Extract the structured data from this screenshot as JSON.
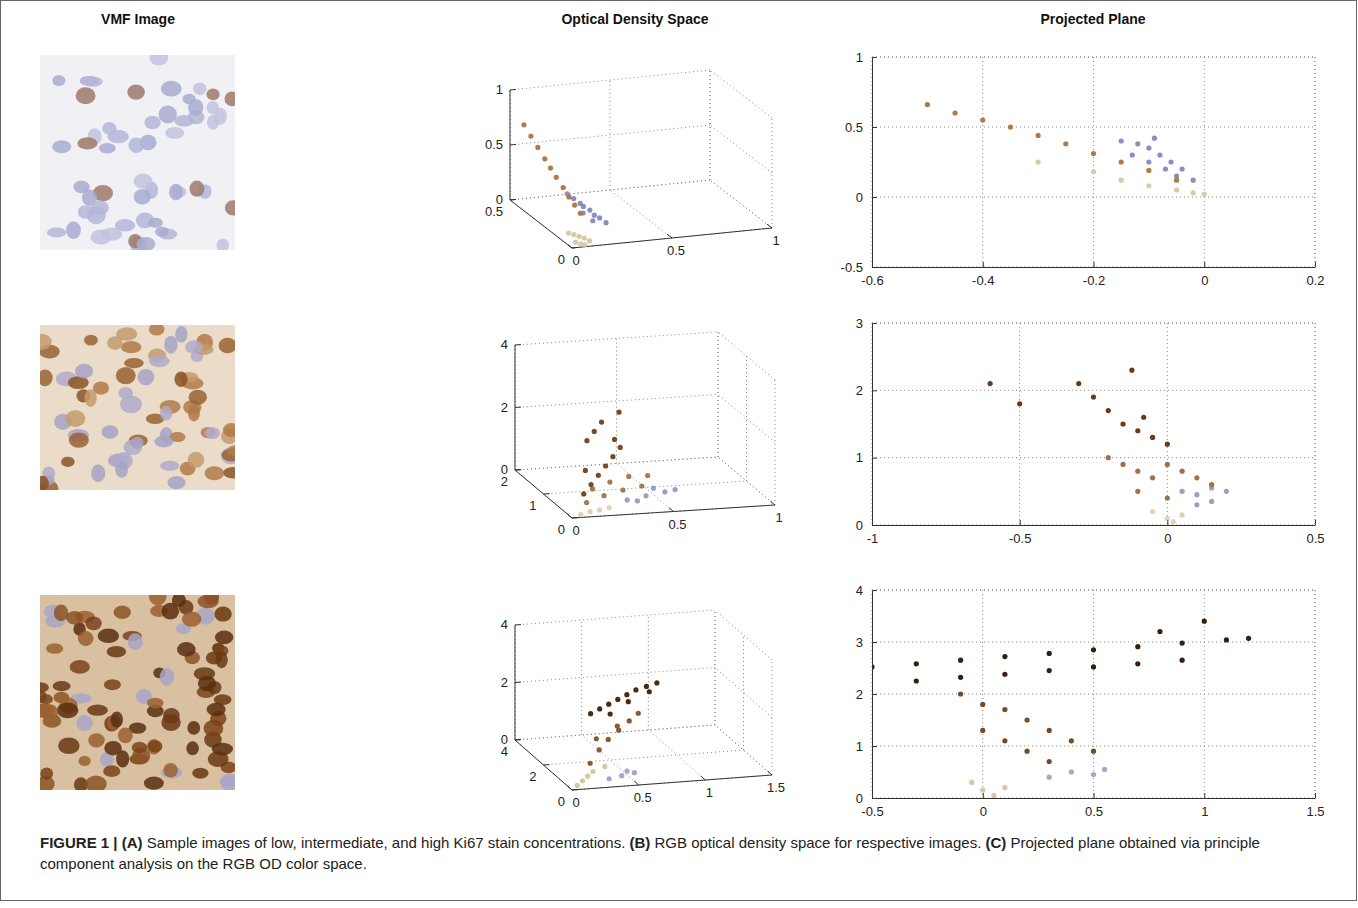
{
  "figure": {
    "column_titles": [
      "VMF Image",
      "Optical Density Space",
      "Projected Plane"
    ],
    "caption": {
      "label": "FIGURE 1 |",
      "parts": [
        {
          "letter": "(A)",
          "text": "Sample images of low, intermediate, and high Ki67 stain concentrations."
        },
        {
          "letter": "(B)",
          "text": "RGB optical density space for respective images."
        },
        {
          "letter": "(C)",
          "text": "Projected plane obtained via principle component analysis on the RGB OD color space."
        }
      ]
    }
  },
  "chart_data": [
    {
      "type": "scatter3d",
      "grid": true,
      "xlim": [
        0,
        1
      ],
      "ylim": [
        0,
        0.5
      ],
      "zlim": [
        0,
        1
      ],
      "xticks": [
        0,
        0.5,
        1
      ],
      "yticks": [
        0,
        0.5
      ],
      "zticks": [
        0,
        0.5,
        1
      ],
      "series": [
        {
          "color": "#d8c9a8",
          "x": [
            0.02,
            0.04,
            0.06,
            0.08,
            0.1,
            0.03,
            0.05,
            0.07
          ],
          "y": [
            0.06,
            0.05,
            0.04,
            0.03,
            0.02,
            0.02,
            0.01,
            0.01
          ],
          "z": [
            0.08,
            0.07,
            0.06,
            0.05,
            0.03,
            0.03,
            0.02,
            0.01
          ]
        },
        {
          "color": "#8a8fc0",
          "x": [
            0.1,
            0.12,
            0.14,
            0.15,
            0.17,
            0.18,
            0.2,
            0.22,
            0.13,
            0.16
          ],
          "y": [
            0.2,
            0.18,
            0.16,
            0.15,
            0.13,
            0.11,
            0.1,
            0.08,
            0.12,
            0.09
          ],
          "z": [
            0.3,
            0.27,
            0.24,
            0.22,
            0.2,
            0.17,
            0.15,
            0.12,
            0.19,
            0.14
          ]
        },
        {
          "color": "#b07a4a",
          "x": [
            0.02,
            0.03,
            0.04,
            0.05,
            0.06,
            0.07,
            0.08,
            0.09,
            0.1,
            0.11
          ],
          "y": [
            0.42,
            0.38,
            0.34,
            0.3,
            0.27,
            0.24,
            0.2,
            0.17,
            0.14,
            0.11
          ],
          "z": [
            0.75,
            0.68,
            0.61,
            0.54,
            0.48,
            0.42,
            0.36,
            0.3,
            0.25,
            0.2
          ]
        }
      ]
    },
    {
      "type": "scatter3d",
      "grid": true,
      "xlim": [
        0,
        1
      ],
      "ylim": [
        0,
        2
      ],
      "zlim": [
        0,
        4
      ],
      "xticks": [
        0,
        0.5,
        1
      ],
      "yticks": [
        0,
        1,
        2
      ],
      "zticks": [
        0,
        2,
        4
      ],
      "series": [
        {
          "color": "#e0d2b5",
          "x": [
            0.05,
            0.1,
            0.15,
            0.2
          ],
          "y": [
            0.05,
            0.08,
            0.1,
            0.12
          ],
          "z": [
            0.05,
            0.1,
            0.12,
            0.15
          ]
        },
        {
          "color": "#9a9fc8",
          "x": [
            0.3,
            0.4,
            0.5,
            0.55,
            0.45,
            0.35
          ],
          "y": [
            0.2,
            0.25,
            0.3,
            0.3,
            0.35,
            0.2
          ],
          "z": [
            0.3,
            0.35,
            0.4,
            0.45,
            0.5,
            0.25
          ]
        },
        {
          "color": "#a77b52",
          "x": [
            0.1,
            0.2,
            0.3,
            0.4,
            0.15,
            0.25,
            0.35,
            0.45
          ],
          "y": [
            0.2,
            0.3,
            0.35,
            0.4,
            0.35,
            0.45,
            0.5,
            0.55
          ],
          "z": [
            0.3,
            0.4,
            0.5,
            0.55,
            0.6,
            0.7,
            0.8,
            0.75
          ]
        },
        {
          "color": "#7a4a26",
          "x": [
            0.1,
            0.15,
            0.2,
            0.25,
            0.3,
            0.35,
            0.2,
            0.25,
            0.3,
            0.4,
            0.15,
            0.35
          ],
          "y": [
            0.3,
            0.4,
            0.5,
            0.6,
            0.7,
            0.8,
            0.9,
            1.0,
            1.1,
            1.2,
            0.6,
            1.0
          ],
          "z": [
            0.5,
            0.7,
            0.9,
            1.1,
            1.3,
            1.5,
            1.7,
            1.9,
            2.1,
            2.3,
            1.0,
            1.6
          ]
        }
      ]
    },
    {
      "type": "scatter3d",
      "grid": true,
      "xlim": [
        0,
        1.5
      ],
      "ylim": [
        0,
        4
      ],
      "zlim": [
        0,
        4
      ],
      "xticks": [
        0,
        0.5,
        1,
        1.5
      ],
      "yticks": [
        0,
        2,
        4
      ],
      "zticks": [
        0,
        2,
        4
      ],
      "series": [
        {
          "color": "#d9c6a4",
          "x": [
            0.05,
            0.1,
            0.15,
            0.2,
            0.3
          ],
          "y": [
            0.1,
            0.2,
            0.3,
            0.4,
            0.5
          ],
          "z": [
            0.1,
            0.2,
            0.3,
            0.4,
            0.5
          ]
        },
        {
          "color": "#a0a8cc",
          "x": [
            0.3,
            0.4,
            0.5,
            0.45
          ],
          "y": [
            0.2,
            0.25,
            0.3,
            0.35
          ],
          "z": [
            0.2,
            0.25,
            0.3,
            0.35
          ]
        },
        {
          "color": "#8a5a32",
          "x": [
            0.2,
            0.3,
            0.4,
            0.5,
            0.6,
            0.3,
            0.5,
            0.7
          ],
          "y": [
            0.6,
            0.9,
            1.2,
            1.4,
            1.6,
            1.1,
            1.5,
            1.9
          ],
          "z": [
            0.6,
            0.9,
            1.1,
            1.3,
            1.5,
            1.2,
            1.4,
            1.6
          ]
        },
        {
          "color": "#4a2a14",
          "x": [
            0.3,
            0.4,
            0.5,
            0.6,
            0.7,
            0.8,
            0.9,
            1.0,
            0.5,
            0.7,
            0.9
          ],
          "y": [
            1.5,
            1.8,
            2.1,
            2.4,
            2.7,
            3.0,
            3.2,
            3.4,
            2.0,
            2.6,
            3.0
          ],
          "z": [
            1.9,
            1.9,
            1.9,
            1.9,
            1.9,
            1.9,
            1.9,
            1.9,
            1.6,
            1.7,
            1.8
          ]
        }
      ]
    },
    {
      "type": "scatter",
      "grid": true,
      "xlim": [
        -0.6,
        0.2
      ],
      "ylim": [
        -0.5,
        1
      ],
      "xticks": [
        -0.6,
        -0.4,
        -0.2,
        0,
        0.2
      ],
      "yticks": [
        -0.5,
        0,
        0.5,
        1
      ],
      "series": [
        {
          "color": "#d8c9a8",
          "x": [
            -0.3,
            -0.2,
            -0.15,
            -0.1,
            -0.05,
            -0.02,
            0
          ],
          "y": [
            0.25,
            0.18,
            0.12,
            0.08,
            0.05,
            0.03,
            0.02
          ]
        },
        {
          "color": "#8a8fc0",
          "x": [
            -0.15,
            -0.12,
            -0.1,
            -0.08,
            -0.06,
            -0.04,
            -0.02,
            -0.1,
            -0.07,
            -0.05,
            -0.13,
            -0.09
          ],
          "y": [
            0.4,
            0.38,
            0.35,
            0.3,
            0.25,
            0.2,
            0.12,
            0.25,
            0.2,
            0.15,
            0.3,
            0.42
          ]
        },
        {
          "color": "#b07a4a",
          "x": [
            -0.5,
            -0.45,
            -0.4,
            -0.35,
            -0.3,
            -0.25,
            -0.2,
            -0.15,
            -0.1,
            -0.05
          ],
          "y": [
            0.66,
            0.6,
            0.55,
            0.5,
            0.44,
            0.38,
            0.31,
            0.25,
            0.19,
            0.12
          ]
        }
      ]
    },
    {
      "type": "scatter",
      "grid": true,
      "xlim": [
        -1,
        0.5
      ],
      "ylim": [
        0,
        3
      ],
      "xticks": [
        -1,
        -0.5,
        0,
        0.5
      ],
      "yticks": [
        0,
        1,
        2,
        3
      ],
      "series": [
        {
          "color": "#e0d2b5",
          "x": [
            -0.05,
            0,
            0.02,
            0.05
          ],
          "y": [
            0.2,
            0.1,
            0.05,
            0.15
          ]
        },
        {
          "color": "#9a9fc8",
          "x": [
            0.05,
            0.1,
            0.15,
            0.2,
            0.1,
            0.15
          ],
          "y": [
            0.5,
            0.45,
            0.55,
            0.5,
            0.3,
            0.35
          ]
        },
        {
          "color": "#a0704a",
          "x": [
            -0.2,
            -0.15,
            -0.1,
            -0.05,
            0,
            0.05,
            0.1,
            0.15,
            -0.1,
            0
          ],
          "y": [
            1.0,
            0.9,
            0.8,
            0.7,
            0.9,
            0.8,
            0.7,
            0.6,
            0.5,
            0.4
          ]
        },
        {
          "color": "#6a3a1a",
          "x": [
            -0.3,
            -0.25,
            -0.2,
            -0.15,
            -0.1,
            -0.05,
            0,
            -0.6,
            -0.5,
            -0.12,
            -0.08
          ],
          "y": [
            2.1,
            1.9,
            1.7,
            1.5,
            1.4,
            1.3,
            1.2,
            2.1,
            1.8,
            2.3,
            1.6
          ]
        }
      ]
    },
    {
      "type": "scatter",
      "grid": true,
      "xlim": [
        -0.5,
        1.5
      ],
      "ylim": [
        0,
        4
      ],
      "xticks": [
        -0.5,
        0,
        0.5,
        1,
        1.5
      ],
      "yticks": [
        0,
        1,
        2,
        3,
        4
      ],
      "series": [
        {
          "color": "#d9c6a4",
          "x": [
            -0.05,
            0,
            0.05,
            0.1
          ],
          "y": [
            0.3,
            0.15,
            0.05,
            0.2
          ]
        },
        {
          "color": "#a0a8cc",
          "x": [
            0.3,
            0.4,
            0.5,
            0.55
          ],
          "y": [
            0.4,
            0.5,
            0.45,
            0.55
          ]
        },
        {
          "color": "#7a4a22",
          "x": [
            -0.1,
            0,
            0.1,
            0.2,
            0.3,
            0.4,
            0.5,
            0,
            0.1,
            0.2,
            0.3
          ],
          "y": [
            2.0,
            1.8,
            1.7,
            1.5,
            1.3,
            1.1,
            0.9,
            1.3,
            1.1,
            0.9,
            0.7
          ]
        },
        {
          "color": "#3a1e0c",
          "x": [
            -0.5,
            -0.3,
            -0.1,
            0.1,
            0.3,
            0.5,
            0.7,
            0.9,
            1.1,
            1.2
          ],
          "y": [
            2.52,
            2.58,
            2.65,
            2.72,
            2.78,
            2.85,
            2.91,
            2.98,
            3.04,
            3.07
          ]
        },
        {
          "color": "#3a1e0c",
          "x": [
            -0.3,
            -0.1,
            0.1,
            0.3,
            0.5,
            0.7,
            0.9
          ],
          "y": [
            2.25,
            2.32,
            2.38,
            2.45,
            2.52,
            2.58,
            2.65
          ]
        },
        {
          "color": "#3a1e0c",
          "x": [
            1,
            0.8
          ],
          "y": [
            3.4,
            3.2
          ]
        }
      ]
    }
  ]
}
